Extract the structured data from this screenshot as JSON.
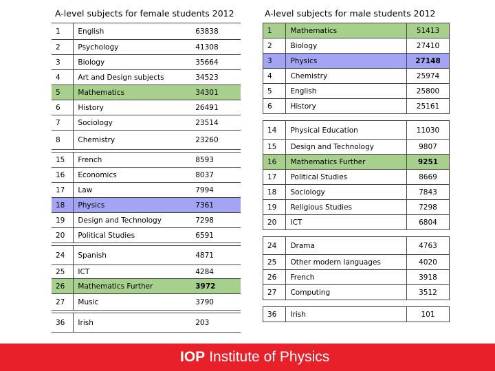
{
  "female": {
    "title": "A-level subjects for female students 2012",
    "rows": [
      {
        "rank": "1",
        "subject": "English",
        "value": "63838"
      },
      {
        "rank": "2",
        "subject": "Psychology",
        "value": "41308"
      },
      {
        "rank": "3",
        "subject": "Biology",
        "value": "35664"
      },
      {
        "rank": "4",
        "subject": "Art and Design subjects",
        "value": "34523"
      },
      {
        "rank": "5",
        "subject": "Mathematics",
        "value": "34301"
      },
      {
        "rank": "6",
        "subject": "History",
        "value": "26491"
      },
      {
        "rank": "7",
        "subject": "Sociology",
        "value": "23514"
      },
      {
        "rank": "8",
        "subject": "Chemistry",
        "value": "23260"
      },
      {
        "rank": "15",
        "subject": "French",
        "value": "8593"
      },
      {
        "rank": "16",
        "subject": "Economics",
        "value": "8037"
      },
      {
        "rank": "17",
        "subject": "Law",
        "value": "7994"
      },
      {
        "rank": "18",
        "subject": "Physics",
        "value": "7361"
      },
      {
        "rank": "19",
        "subject": "Design and Technology",
        "value": "7298"
      },
      {
        "rank": "20",
        "subject": "Political Studies",
        "value": "6591"
      },
      {
        "rank": "24",
        "subject": "Spanish",
        "value": "4871"
      },
      {
        "rank": "25",
        "subject": "ICT",
        "value": "4284"
      },
      {
        "rank": "26",
        "subject": "Mathematics Further",
        "value": "3972"
      },
      {
        "rank": "27",
        "subject": "Music",
        "value": "3790"
      },
      {
        "rank": "36",
        "subject": "Irish",
        "value": "203"
      }
    ]
  },
  "male": {
    "title": "A-level subjects for male students 2012",
    "rows": [
      {
        "rank": "1",
        "subject": "Mathematics",
        "value": "51413"
      },
      {
        "rank": "2",
        "subject": "Biology",
        "value": "27410"
      },
      {
        "rank": "3",
        "subject": "Physics",
        "value": "27148"
      },
      {
        "rank": "4",
        "subject": "Chemistry",
        "value": "25974"
      },
      {
        "rank": "5",
        "subject": "English",
        "value": "25800"
      },
      {
        "rank": "6",
        "subject": "History",
        "value": "25161"
      },
      {
        "rank": "14",
        "subject": "Physical Education",
        "value": "11030"
      },
      {
        "rank": "15",
        "subject": "Design and Technology",
        "value": "9807"
      },
      {
        "rank": "16",
        "subject": "Mathematics Further",
        "value": "9251"
      },
      {
        "rank": "17",
        "subject": "Political Studies",
        "value": "8669"
      },
      {
        "rank": "18",
        "subject": "Sociology",
        "value": "7843"
      },
      {
        "rank": "19",
        "subject": "Religious Studies",
        "value": "7298"
      },
      {
        "rank": "20",
        "subject": "ICT",
        "value": "6804"
      },
      {
        "rank": "24",
        "subject": "Drama",
        "value": "4763"
      },
      {
        "rank": "25",
        "subject": "Other modern languages",
        "value": "4020"
      },
      {
        "rank": "26",
        "subject": "French",
        "value": "3918"
      },
      {
        "rank": "27",
        "subject": "Computing",
        "value": "3512"
      },
      {
        "rank": "36",
        "subject": "Irish",
        "value": "101"
      }
    ]
  },
  "footer": {
    "logo_short": "IOP",
    "logo_full": "Institute of Physics",
    "color": "#e8202a"
  },
  "highlight_colors": {
    "mathematics": "#a8d08d",
    "physics": "#a4a4f4"
  }
}
